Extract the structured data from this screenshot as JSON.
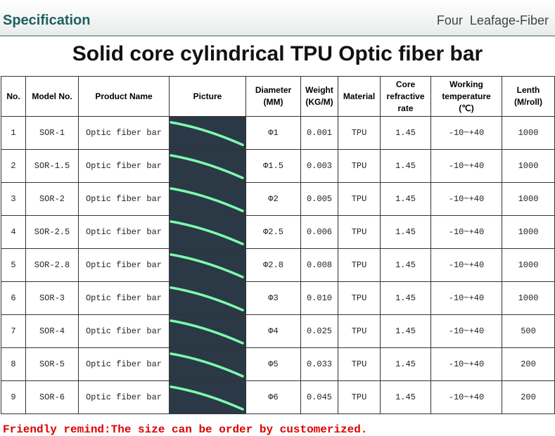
{
  "header": {
    "left": "Specification",
    "right": "Four  Leafage-Fiber"
  },
  "title": "Solid core cylindrical TPU Optic fiber bar",
  "table": {
    "columns": [
      "No.",
      "Model No.",
      "Product Name",
      "Picture",
      "Diameter\n(MM)",
      "Weight\n(KG/M)",
      "Material",
      "Core\nrefractive\nrate",
      "Working\ntemperature\n(℃)",
      "Lenth\n(M/roll)"
    ],
    "rows": [
      [
        "1",
        "SOR-1",
        "Optic fiber bar",
        "Φ1",
        "0.001",
        "TPU",
        "1.45",
        "-10~+40",
        "1000"
      ],
      [
        "2",
        "SOR-1.5",
        "Optic fiber bar",
        "Φ1.5",
        "0.003",
        "TPU",
        "1.45",
        "-10~+40",
        "1000"
      ],
      [
        "3",
        "SOR-2",
        "Optic fiber bar",
        "Φ2",
        "0.005",
        "TPU",
        "1.45",
        "-10~+40",
        "1000"
      ],
      [
        "4",
        "SOR-2.5",
        "Optic fiber bar",
        "Φ2.5",
        "0.006",
        "TPU",
        "1.45",
        "-10~+40",
        "1000"
      ],
      [
        "5",
        "SOR-2.8",
        "Optic fiber bar",
        "Φ2.8",
        "0.008",
        "TPU",
        "1.45",
        "-10~+40",
        "1000"
      ],
      [
        "6",
        "SOR-3",
        "Optic fiber bar",
        "Φ3",
        "0.010",
        "TPU",
        "1.45",
        "-10~+40",
        "1000"
      ],
      [
        "7",
        "SOR-4",
        "Optic fiber bar",
        "Φ4",
        "0.025",
        "TPU",
        "1.45",
        "-10~+40",
        "500"
      ],
      [
        "8",
        "SOR-5",
        "Optic fiber bar",
        "Φ5",
        "0.033",
        "TPU",
        "1.45",
        "-10~+40",
        "200"
      ],
      [
        "9",
        "SOR-6",
        "Optic fiber bar",
        "Φ6",
        "0.045",
        "TPU",
        "1.45",
        "-10~+40",
        "200"
      ]
    ]
  },
  "footer": "Friendly remind:The size can be order by customerized."
}
